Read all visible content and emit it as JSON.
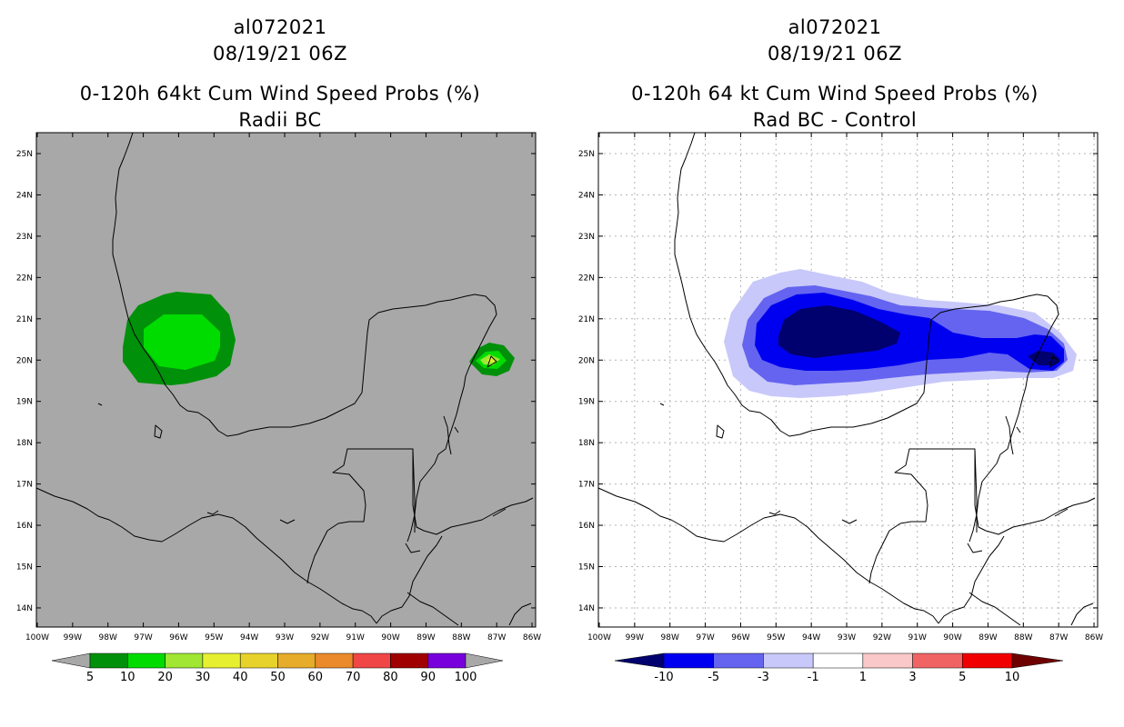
{
  "left_panel": {
    "storm_id": "al072021",
    "datetime": "08/19/21 06Z",
    "title": "0-120h 64kt Cum Wind Speed Probs (%)",
    "subtitle": "Radii BC",
    "background_color": "#a8a8a8",
    "colorbar": {
      "labels": [
        "5",
        "10",
        "20",
        "30",
        "40",
        "50",
        "60",
        "70",
        "80",
        "90",
        "100"
      ],
      "colors": [
        "#00900a",
        "#00dc00",
        "#a0e632",
        "#e6f030",
        "#e6d22a",
        "#e6ac2a",
        "#ea8a2a",
        "#f04646",
        "#a00000",
        "#7800dc"
      ],
      "end_color": "#a8a8a8"
    },
    "features": [
      {
        "name": "western-gulf-probability-blob",
        "levels": [
          "5",
          "10"
        ]
      },
      {
        "name": "cozumel-probability-blob",
        "levels": [
          "5",
          "10",
          "20",
          "30"
        ]
      }
    ]
  },
  "right_panel": {
    "storm_id": "al072021",
    "datetime": "08/19/21 06Z",
    "title": "0-120h 64 kt Cum Wind Speed Probs (%)",
    "subtitle": "Rad BC - Control",
    "background_color": "#ffffff",
    "colorbar": {
      "labels": [
        "-10",
        "-5",
        "-3",
        "-1",
        "1",
        "3",
        "5",
        "10"
      ],
      "colors": [
        "#00006e",
        "#0000f0",
        "#6464f0",
        "#c8c8fa",
        "#ffffff",
        "#fac8c8",
        "#f06464",
        "#f00000",
        "#6e0000"
      ]
    },
    "features": [
      {
        "name": "negative-difference-plume",
        "levels": [
          "-1",
          "-3",
          "-5",
          "-10"
        ]
      }
    ]
  },
  "lat_labels": [
    "25N",
    "24N",
    "23N",
    "22N",
    "21N",
    "20N",
    "19N",
    "18N",
    "17N",
    "16N",
    "15N",
    "14N"
  ],
  "lon_labels": [
    "100W",
    "99W",
    "98W",
    "97W",
    "96W",
    "95W",
    "94W",
    "93W",
    "92W",
    "91W",
    "90W",
    "89W",
    "88W",
    "87W",
    "86W"
  ]
}
